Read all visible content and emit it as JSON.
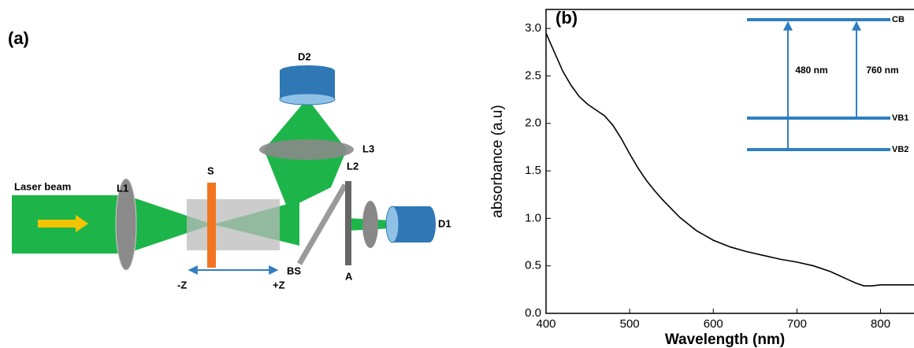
{
  "panel_a": {
    "label": "(a)",
    "laser": "Laser beam",
    "l1": "L1",
    "sample": "S",
    "l2": "L2",
    "l3": "L3",
    "d2": "D2",
    "d1": "D1",
    "bs": "BS",
    "aperture": "A",
    "minus_z": "-Z",
    "plus_z": "+Z"
  },
  "chart_data": {
    "type": "line",
    "panel_label": "(b)",
    "x_label": "Wavelength (nm)",
    "y_label": "absorbance (a.u)",
    "x": [
      400,
      410,
      420,
      430,
      440,
      450,
      460,
      470,
      480,
      490,
      500,
      510,
      520,
      530,
      540,
      550,
      560,
      570,
      580,
      590,
      600,
      620,
      640,
      660,
      680,
      700,
      720,
      740,
      750,
      760,
      770,
      780,
      790,
      800,
      820,
      840
    ],
    "series": [
      {
        "color": "#000000",
        "values": [
          2.95,
          2.75,
          2.55,
          2.4,
          2.28,
          2.2,
          2.14,
          2.08,
          1.98,
          1.84,
          1.68,
          1.53,
          1.4,
          1.29,
          1.19,
          1.1,
          1.01,
          0.94,
          0.87,
          0.82,
          0.77,
          0.7,
          0.65,
          0.61,
          0.57,
          0.54,
          0.5,
          0.44,
          0.4,
          0.36,
          0.32,
          0.29,
          0.29,
          0.3,
          0.3,
          0.3
        ]
      }
    ],
    "xlim": [
      400,
      840
    ],
    "ylim": [
      0,
      3.2
    ],
    "xticks": [
      400,
      500,
      600,
      700,
      800
    ],
    "yticks": [
      {
        "value": 0,
        "label": "0.0"
      },
      {
        "value": 0.5,
        "label": "0.5"
      },
      {
        "value": 1,
        "label": "1.0"
      },
      {
        "value": 1.5,
        "label": "1.5"
      },
      {
        "value": 2,
        "label": "2.0"
      },
      {
        "value": 2.5,
        "label": "2.5"
      },
      {
        "value": 3,
        "label": "3.0"
      }
    ],
    "inset": {
      "levels": [
        "CB",
        "VB1",
        "VB2"
      ],
      "transitions": [
        "480 nm",
        "760 nm"
      ],
      "color": "#2f7fc1"
    }
  }
}
